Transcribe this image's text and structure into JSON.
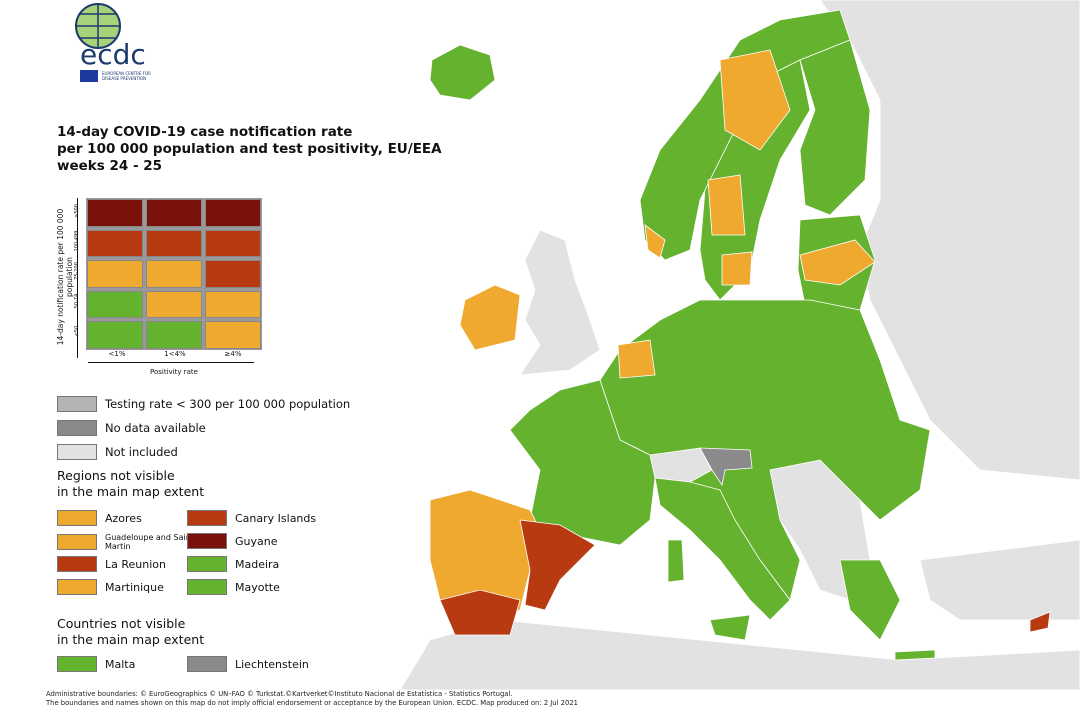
{
  "logo": {
    "text": "ecdc",
    "subtitle": "EUROPEAN CENTRE FOR DISEASE PREVENTION AND CONTROL"
  },
  "title": [
    "14-day COVID-19 case notification rate",
    "per 100 000 population and test positivity, EU/EEA",
    "weeks 24 - 25"
  ],
  "matrix": {
    "y_label": "14-day notification rate per 100 000 population",
    "x_label": "Positivity rate",
    "rows": [
      "≥500",
      "200-499",
      "75-200",
      "50-74",
      "<50"
    ],
    "cols": [
      "<1%",
      "1<4%",
      "≥4%"
    ],
    "cells": [
      [
        "#7a110a",
        "#7a110a",
        "#7a110a"
      ],
      [
        "#b83a11",
        "#b83a11",
        "#b83a11"
      ],
      [
        "#f0a92f",
        "#f0a92f",
        "#b83a11"
      ],
      [
        "#64b22e",
        "#f0a92f",
        "#f0a92f"
      ],
      [
        "#64b22e",
        "#64b22e",
        "#f0a92f"
      ]
    ]
  },
  "status_legend": [
    {
      "label": "Testing rate < 300 per 100 000 population",
      "color": "#b4b4b4"
    },
    {
      "label": "No data available",
      "color": "#8a8a8a"
    },
    {
      "label": "Not included",
      "color": "#e2e2e2"
    }
  ],
  "regions_heading": [
    "Regions not visible",
    "in the main map extent"
  ],
  "regions": [
    {
      "label": "Azores",
      "color": "#f0a92f"
    },
    {
      "label": "Canary Islands",
      "color": "#b83a11"
    },
    {
      "label": "Guadeloupe and Saint Martin",
      "color": "#f0a92f"
    },
    {
      "label": "Guyane",
      "color": "#7a110a"
    },
    {
      "label": "La Reunion",
      "color": "#b83a11"
    },
    {
      "label": "Madeira",
      "color": "#64b22e"
    },
    {
      "label": "Martinique",
      "color": "#f0a92f"
    },
    {
      "label": "Mayotte",
      "color": "#64b22e"
    }
  ],
  "countries_heading": [
    "Countries not visible",
    "in the main map extent"
  ],
  "countries": [
    {
      "label": "Malta",
      "color": "#64b22e"
    },
    {
      "label": "Liechtenstein",
      "color": "#8a8a8a"
    }
  ],
  "footer": [
    "Administrative boundaries: © EuroGeographics © UN–FAO © Turkstat.©Kartverket©Instituto Nacional de Estatística - Statistics Portugal.",
    "The boundaries and names shown on this map do not imply official endorsement or acceptance by the European Union. ECDC. Map produced on: 2 Jul 2021"
  ]
}
